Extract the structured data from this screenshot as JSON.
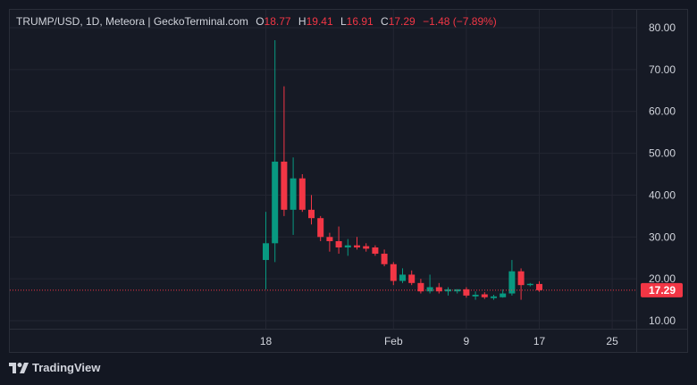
{
  "legend": {
    "symbol": "TRUMP/USD, 1D, Meteora | GeckoTerminal.com",
    "open_label": "O",
    "open": "18.77",
    "high_label": "H",
    "high": "19.41",
    "low_label": "L",
    "low": "16.91",
    "close_label": "C",
    "close": "17.29",
    "change": "−1.48 (−7.89%)"
  },
  "brand": {
    "name": "TradingView"
  },
  "colors": {
    "up": "#089981",
    "down": "#f23645",
    "background": "#161a25",
    "grid": "#232632"
  },
  "chart_data": {
    "type": "candlestick",
    "title": "TRUMP/USD, 1D, Meteora | GeckoTerminal.com",
    "y_ticks": [
      "10.00",
      "20.00",
      "30.00",
      "40.00",
      "50.00",
      "60.00",
      "70.00",
      "80.00"
    ],
    "ylim": [
      10,
      80
    ],
    "x_ticks": [
      {
        "label": "18",
        "day": 0
      },
      {
        "label": "Feb",
        "day": 14
      },
      {
        "label": "9",
        "day": 22
      },
      {
        "label": "17",
        "day": 30
      },
      {
        "label": "25",
        "day": 38
      }
    ],
    "last_price": "17.29",
    "last_price_value": 17.29,
    "candles": [
      {
        "day": 0,
        "o": 24.5,
        "h": 36,
        "l": 17.5,
        "c": 28.5
      },
      {
        "day": 1,
        "o": 28.5,
        "h": 77,
        "l": 24,
        "c": 48
      },
      {
        "day": 2,
        "o": 48,
        "h": 66,
        "l": 35,
        "c": 36.5
      },
      {
        "day": 3,
        "o": 36.5,
        "h": 49,
        "l": 30.5,
        "c": 44
      },
      {
        "day": 4,
        "o": 44,
        "h": 45,
        "l": 36,
        "c": 36.5
      },
      {
        "day": 5,
        "o": 36.5,
        "h": 40,
        "l": 33,
        "c": 34.5
      },
      {
        "day": 6,
        "o": 34.5,
        "h": 35,
        "l": 29,
        "c": 30
      },
      {
        "day": 7,
        "o": 30,
        "h": 31,
        "l": 26.5,
        "c": 29
      },
      {
        "day": 8,
        "o": 29,
        "h": 32.5,
        "l": 26,
        "c": 27.5
      },
      {
        "day": 9,
        "o": 27.5,
        "h": 29.5,
        "l": 25.5,
        "c": 28
      },
      {
        "day": 10,
        "o": 28,
        "h": 30,
        "l": 27,
        "c": 27.5
      },
      {
        "day": 11,
        "o": 27.8,
        "h": 28.5,
        "l": 26.5,
        "c": 27.2
      },
      {
        "day": 12,
        "o": 27.5,
        "h": 28,
        "l": 25.5,
        "c": 26
      },
      {
        "day": 13,
        "o": 26,
        "h": 27,
        "l": 23,
        "c": 23.5
      },
      {
        "day": 14,
        "o": 23.5,
        "h": 24,
        "l": 18.5,
        "c": 19.5
      },
      {
        "day": 15,
        "o": 19.5,
        "h": 22.5,
        "l": 19,
        "c": 21
      },
      {
        "day": 16,
        "o": 21,
        "h": 22,
        "l": 18.5,
        "c": 19
      },
      {
        "day": 17,
        "o": 19,
        "h": 20,
        "l": 16.5,
        "c": 17
      },
      {
        "day": 18,
        "o": 17,
        "h": 21,
        "l": 16.5,
        "c": 18
      },
      {
        "day": 19,
        "o": 18,
        "h": 19,
        "l": 16.5,
        "c": 17
      },
      {
        "day": 20,
        "o": 17,
        "h": 18,
        "l": 16,
        "c": 17.5
      },
      {
        "day": 21,
        "o": 17,
        "h": 17.5,
        "l": 16.5,
        "c": 17.5
      },
      {
        "day": 22,
        "o": 17.5,
        "h": 18,
        "l": 15.5,
        "c": 16
      },
      {
        "day": 23,
        "o": 15.8,
        "h": 17,
        "l": 15,
        "c": 16.2
      },
      {
        "day": 24,
        "o": 16.3,
        "h": 16.8,
        "l": 15.2,
        "c": 15.6
      },
      {
        "day": 25,
        "o": 15.4,
        "h": 16.2,
        "l": 15,
        "c": 15.8
      },
      {
        "day": 26,
        "o": 15.6,
        "h": 17.5,
        "l": 15.5,
        "c": 16.5
      },
      {
        "day": 27,
        "o": 16.5,
        "h": 24.5,
        "l": 16,
        "c": 21.8
      },
      {
        "day": 28,
        "o": 21.8,
        "h": 22.5,
        "l": 15,
        "c": 18.5
      },
      {
        "day": 29,
        "o": 18.5,
        "h": 19,
        "l": 18.2,
        "c": 18.8
      },
      {
        "day": 30,
        "o": 18.77,
        "h": 19.41,
        "l": 16.91,
        "c": 17.29
      }
    ]
  }
}
